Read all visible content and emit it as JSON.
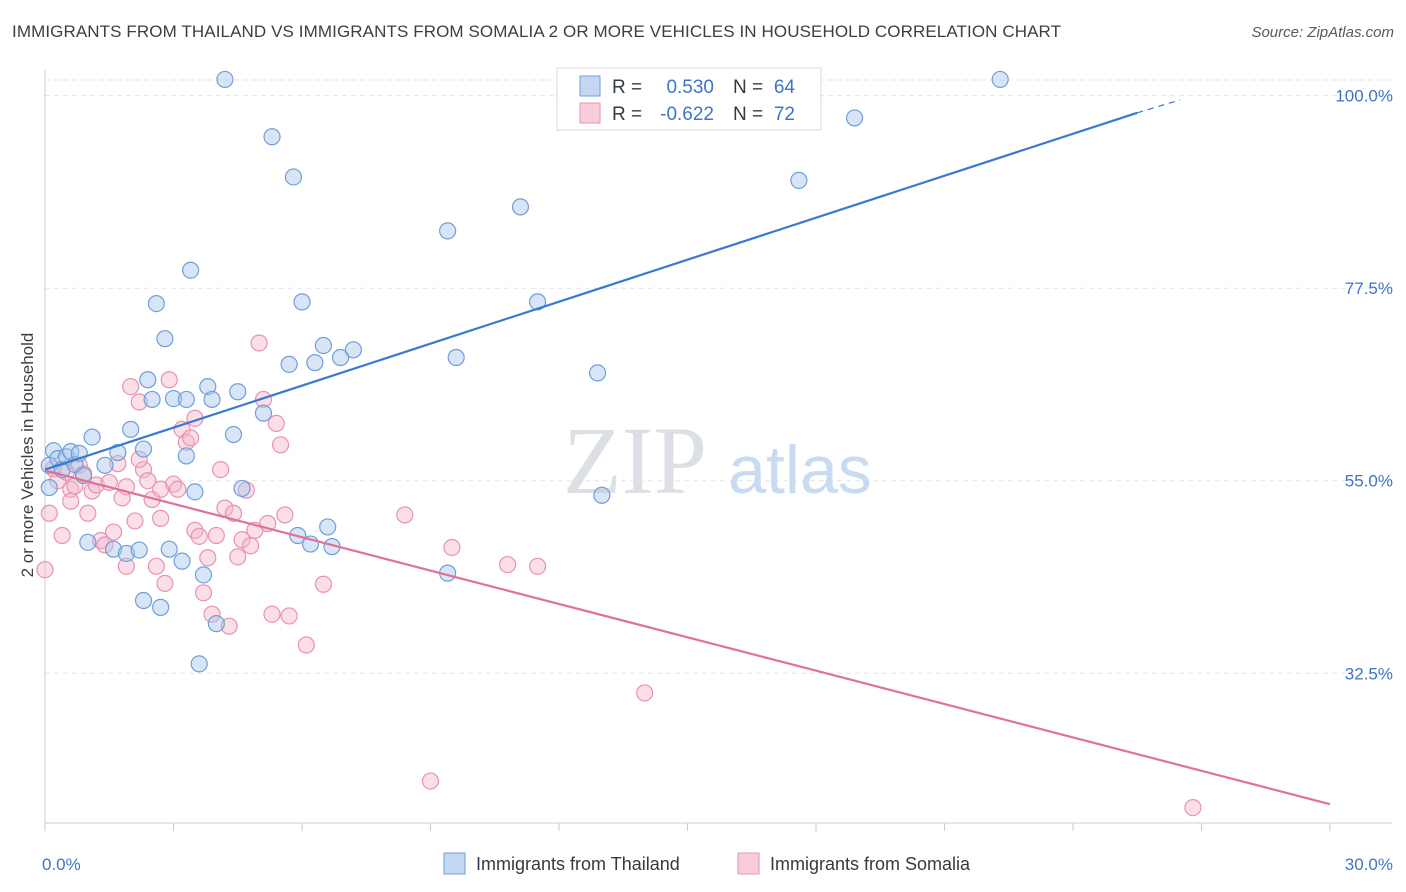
{
  "title": "IMMIGRANTS FROM THAILAND VS IMMIGRANTS FROM SOMALIA 2 OR MORE VEHICLES IN HOUSEHOLD CORRELATION CHART",
  "source": "Source: ZipAtlas.com",
  "watermark": {
    "zip": "ZIP",
    "atlas": "atlas"
  },
  "colors": {
    "thailand_fill": "#a9c6ec",
    "thailand_stroke": "#6f9fd8",
    "thailand_line": "#3a78d1",
    "somalia_fill": "#f5b8cc",
    "somalia_stroke": "#e892b1",
    "somalia_line": "#e0709c",
    "tick_label": "#3e74c9",
    "grid": "#e3e6ea"
  },
  "legend": {
    "rows": [
      {
        "r_label": "R =",
        "r_value": "0.530",
        "n_label": "N =",
        "n_value": "64"
      },
      {
        "r_label": "R =",
        "r_value": "-0.622",
        "n_label": "N =",
        "n_value": "72"
      }
    ]
  },
  "chart_data": {
    "type": "scatter",
    "xlabel": "",
    "ylabel": "2 or more Vehicles in Household",
    "xlim": [
      0,
      30
    ],
    "ylim": [
      15,
      103
    ],
    "x_tick_labels": [
      "0.0%",
      "30.0%"
    ],
    "y_ticks": [
      32.5,
      55.0,
      77.5,
      100.0
    ],
    "y_tick_labels": [
      "32.5%",
      "55.0%",
      "77.5%",
      "100.0%"
    ],
    "grid": "horizontal dashed",
    "legend_position": "top-center",
    "series": [
      {
        "name": "Immigrants from Thailand",
        "r": 0.53,
        "n": 64,
        "trend": {
          "x": [
            0,
            25.5
          ],
          "y": [
            56.3,
            98.0
          ],
          "dashed_to": [
            26.5,
            99.5
          ]
        },
        "points": [
          [
            0.1,
            54.2
          ],
          [
            0.1,
            56.8
          ],
          [
            0.2,
            58.5
          ],
          [
            0.3,
            57.6
          ],
          [
            0.4,
            56.3
          ],
          [
            0.5,
            57.8
          ],
          [
            0.6,
            58.4
          ],
          [
            0.7,
            56.9
          ],
          [
            0.8,
            58.2
          ],
          [
            0.9,
            55.6
          ],
          [
            1.0,
            47.8
          ],
          [
            1.1,
            60.1
          ],
          [
            1.4,
            56.8
          ],
          [
            1.6,
            47.0
          ],
          [
            1.7,
            58.3
          ],
          [
            1.9,
            46.5
          ],
          [
            2.0,
            61.0
          ],
          [
            2.2,
            46.9
          ],
          [
            2.3,
            41.0
          ],
          [
            2.3,
            58.7
          ],
          [
            2.4,
            66.8
          ],
          [
            2.5,
            64.5
          ],
          [
            2.6,
            75.7
          ],
          [
            2.7,
            40.2
          ],
          [
            2.8,
            71.6
          ],
          [
            2.9,
            47.0
          ],
          [
            3.0,
            64.6
          ],
          [
            3.2,
            45.6
          ],
          [
            3.3,
            64.5
          ],
          [
            3.3,
            57.9
          ],
          [
            3.4,
            79.6
          ],
          [
            3.5,
            53.7
          ],
          [
            3.6,
            33.6
          ],
          [
            3.7,
            44.0
          ],
          [
            3.8,
            66.0
          ],
          [
            3.9,
            64.5
          ],
          [
            4.0,
            38.3
          ],
          [
            4.2,
            101.9
          ],
          [
            4.4,
            60.4
          ],
          [
            4.5,
            65.4
          ],
          [
            4.6,
            54.1
          ],
          [
            5.1,
            62.9
          ],
          [
            5.3,
            95.2
          ],
          [
            5.7,
            68.6
          ],
          [
            5.8,
            90.5
          ],
          [
            5.9,
            48.6
          ],
          [
            6.0,
            75.9
          ],
          [
            6.2,
            47.6
          ],
          [
            6.3,
            68.8
          ],
          [
            6.5,
            70.8
          ],
          [
            6.6,
            49.6
          ],
          [
            6.7,
            47.3
          ],
          [
            6.9,
            69.4
          ],
          [
            7.2,
            70.3
          ],
          [
            9.4,
            84.2
          ],
          [
            9.4,
            44.2
          ],
          [
            9.6,
            69.4
          ],
          [
            11.1,
            87.0
          ],
          [
            11.5,
            75.9
          ],
          [
            12.9,
            67.6
          ],
          [
            13.0,
            53.3
          ],
          [
            17.6,
            90.1
          ],
          [
            18.9,
            97.4
          ],
          [
            22.3,
            101.9
          ]
        ]
      },
      {
        "name": "Immigrants from Somalia",
        "r": -0.622,
        "n": 72,
        "trend": {
          "x": [
            0,
            30
          ],
          "y": [
            56.2,
            17.2
          ]
        },
        "points": [
          [
            0.0,
            44.6
          ],
          [
            0.1,
            51.2
          ],
          [
            0.2,
            56.4
          ],
          [
            0.3,
            55.0
          ],
          [
            0.4,
            48.6
          ],
          [
            0.5,
            56.0
          ],
          [
            0.6,
            54.0
          ],
          [
            0.7,
            54.4
          ],
          [
            0.8,
            56.8
          ],
          [
            0.9,
            55.8
          ],
          [
            1.0,
            51.2
          ],
          [
            1.1,
            53.8
          ],
          [
            1.2,
            54.5
          ],
          [
            1.3,
            48.0
          ],
          [
            1.4,
            47.5
          ],
          [
            1.5,
            54.8
          ],
          [
            1.6,
            49.0
          ],
          [
            1.7,
            57.0
          ],
          [
            1.8,
            53.0
          ],
          [
            1.9,
            54.3
          ],
          [
            2.0,
            66.0
          ],
          [
            2.1,
            50.3
          ],
          [
            2.2,
            64.2
          ],
          [
            2.3,
            56.3
          ],
          [
            2.4,
            55.0
          ],
          [
            2.5,
            52.8
          ],
          [
            2.6,
            45.0
          ],
          [
            2.7,
            50.6
          ],
          [
            2.8,
            43.0
          ],
          [
            2.9,
            66.8
          ],
          [
            3.0,
            54.6
          ],
          [
            3.1,
            54.0
          ],
          [
            3.2,
            61.0
          ],
          [
            3.3,
            59.5
          ],
          [
            3.4,
            60.0
          ],
          [
            3.5,
            49.2
          ],
          [
            3.6,
            48.5
          ],
          [
            3.7,
            41.9
          ],
          [
            3.8,
            46.0
          ],
          [
            3.9,
            39.4
          ],
          [
            4.0,
            48.6
          ],
          [
            4.1,
            56.3
          ],
          [
            4.2,
            51.8
          ],
          [
            4.3,
            38.0
          ],
          [
            4.4,
            51.2
          ],
          [
            4.5,
            46.1
          ],
          [
            4.6,
            48.1
          ],
          [
            4.7,
            53.9
          ],
          [
            4.8,
            47.4
          ],
          [
            4.9,
            49.2
          ],
          [
            5.0,
            71.1
          ],
          [
            5.1,
            64.5
          ],
          [
            5.2,
            50.0
          ],
          [
            5.3,
            39.4
          ],
          [
            5.4,
            61.7
          ],
          [
            5.5,
            59.2
          ],
          [
            5.6,
            51.0
          ],
          [
            5.7,
            39.2
          ],
          [
            6.1,
            35.8
          ],
          [
            6.5,
            42.9
          ],
          [
            8.4,
            51.0
          ],
          [
            9.0,
            19.9
          ],
          [
            9.5,
            47.2
          ],
          [
            10.8,
            45.2
          ],
          [
            11.5,
            45.0
          ],
          [
            14.0,
            30.2
          ],
          [
            26.8,
            16.8
          ],
          [
            1.9,
            45.0
          ],
          [
            2.7,
            54.0
          ],
          [
            0.6,
            52.6
          ],
          [
            3.5,
            62.3
          ],
          [
            2.2,
            57.5
          ]
        ]
      }
    ]
  }
}
